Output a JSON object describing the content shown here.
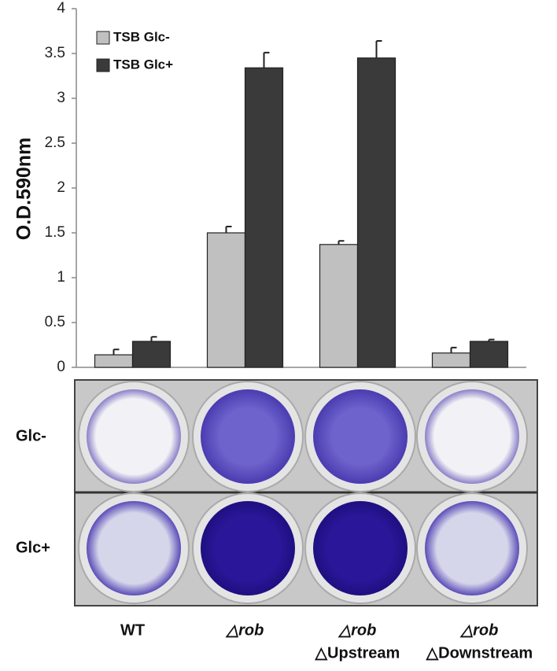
{
  "chart_data": {
    "type": "bar",
    "y_label": "O.D.590nm",
    "categories": [
      [
        "WT"
      ],
      [
        "△rob"
      ],
      [
        "△rob",
        "△Upstream"
      ],
      [
        "△rob",
        "△Downstream"
      ]
    ],
    "series": [
      {
        "name": "TSB Glc-",
        "color": "#c0c0c0",
        "values": [
          0.14,
          1.5,
          1.37,
          0.16
        ],
        "errors": [
          0.06,
          0.07,
          0.04,
          0.06
        ]
      },
      {
        "name": "TSB Glc+",
        "color": "#3a3a3a",
        "values": [
          0.29,
          3.34,
          3.45,
          0.29
        ],
        "errors": [
          0.05,
          0.17,
          0.19,
          0.02
        ]
      }
    ],
    "ylim": [
      0,
      4
    ],
    "yticks": [
      0,
      0.5,
      1,
      1.5,
      2,
      2.5,
      3,
      3.5,
      4
    ],
    "legend": "upper left"
  },
  "photo": {
    "rows": [
      "Glc-",
      "Glc+"
    ]
  }
}
